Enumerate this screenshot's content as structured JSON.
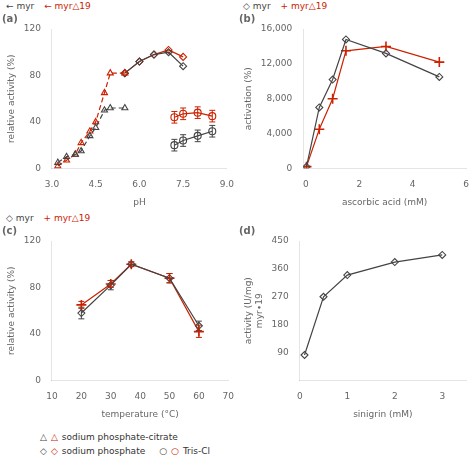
{
  "chart_data": [
    {
      "type": "line",
      "title": "(a)",
      "xlabel": "pH",
      "ylabel": "relative activity (%)",
      "xlim": [
        3,
        9
      ],
      "ylim": [
        0,
        120
      ],
      "xticks": [
        {
          "value": 3,
          "label": "3.0"
        },
        4.5,
        {
          "value": 6,
          "label": "6.0"
        },
        7.5,
        {
          "value": 9,
          "label": "9.0"
        }
      ],
      "yticks": [
        0,
        40,
        80,
        120
      ],
      "grid": false,
      "series": [
        {
          "x": [
            3.2,
            3.5,
            3.8,
            4.0,
            4.3,
            4.5,
            4.8,
            5.0,
            5.5
          ],
          "values": [
            5,
            10,
            12,
            15,
            28,
            35,
            50,
            52,
            52
          ],
          "color": "#444444",
          "marker": "triangle",
          "line_style": "dashed"
        },
        {
          "x": [
            3.2,
            3.5,
            3.8,
            4.0,
            4.3,
            4.5,
            4.8,
            5.0,
            5.5
          ],
          "values": [
            2,
            7,
            12,
            22,
            32,
            40,
            65,
            82,
            82
          ],
          "color": "#cc2200",
          "marker": "triangle",
          "line_style": "dashed"
        },
        {
          "x": [
            5.5,
            6.0,
            6.5,
            7.0,
            7.5
          ],
          "values": [
            82,
            92,
            98,
            100,
            88
          ],
          "color": "#444444",
          "marker": "diamond",
          "line_style": "solid"
        },
        {
          "x": [
            5.5,
            6.0,
            6.5,
            7.0,
            7.5
          ],
          "values": [
            82,
            92,
            98,
            102,
            96
          ],
          "color": "#cc2200",
          "marker": "diamond",
          "line_style": "solid"
        },
        {
          "x": [
            7.2,
            7.5,
            8.0,
            8.5
          ],
          "values": [
            20,
            24,
            28,
            32
          ],
          "yerr": [
            5,
            5,
            5,
            5
          ],
          "color": "#444444",
          "marker": "circle",
          "line_style": "solid"
        },
        {
          "x": [
            7.2,
            7.5,
            8.0,
            8.5
          ],
          "values": [
            44,
            47,
            48,
            45
          ],
          "yerr": [
            5,
            5,
            5,
            5
          ],
          "color": "#cc2200",
          "marker": "circle",
          "line_style": "solid"
        }
      ],
      "annotations": [
        {
          "text": "← myr",
          "color": "#444444"
        },
        {
          "text": "← myr△19",
          "color": "#cc2200"
        }
      ]
    },
    {
      "type": "line",
      "title": "(b)",
      "xlabel": "ascorbic acid (mM)",
      "ylabel": "activation (%)",
      "xlim": [
        -0.1,
        6
      ],
      "ylim": [
        0,
        16000
      ],
      "xticks": [
        0,
        2,
        4,
        6
      ],
      "yticks": [
        0,
        {
          "value": 4000,
          "label": "4,000"
        },
        {
          "value": 8000,
          "label": "8,000"
        },
        {
          "value": 12000,
          "label": "12,000"
        },
        {
          "value": 16000,
          "label": "16,000"
        }
      ],
      "grid": false,
      "series": [
        {
          "x": [
            0.02,
            0.5,
            1.0,
            1.5,
            3.0,
            5.0
          ],
          "values": [
            200,
            7000,
            10200,
            14800,
            13200,
            10500
          ],
          "color": "#444444",
          "marker": "diamond",
          "line_style": "solid"
        },
        {
          "x": [
            0.02,
            0.5,
            1.0,
            1.5,
            3.0,
            5.0
          ],
          "values": [
            200,
            4500,
            8000,
            13500,
            14000,
            12200
          ],
          "color": "#cc2200",
          "marker": "plus",
          "line_style": "solid"
        }
      ],
      "annotations": [
        {
          "text": "◇ myr",
          "color": "#444444"
        },
        {
          "text": "+ myr△19",
          "color": "#cc2200"
        }
      ]
    },
    {
      "type": "line",
      "title": "(c)",
      "xlabel": "temperature (°C)",
      "ylabel": "relative activity (%)",
      "xlim": [
        10,
        70
      ],
      "ylim": [
        0,
        120
      ],
      "xticks": [
        10,
        20,
        30,
        40,
        50,
        60,
        70
      ],
      "yticks": [
        0,
        40,
        80,
        120
      ],
      "grid": false,
      "series": [
        {
          "x": [
            20,
            30,
            37,
            50,
            60
          ],
          "values": [
            58,
            82,
            100,
            88,
            47
          ],
          "yerr": [
            5,
            4,
            2,
            4,
            4
          ],
          "color": "#444444",
          "marker": "diamond",
          "line_style": "solid"
        },
        {
          "x": [
            20,
            30,
            37,
            50,
            60
          ],
          "values": [
            65,
            83,
            100,
            88,
            42
          ],
          "yerr": [
            3,
            3,
            2,
            4,
            5
          ],
          "color": "#cc2200",
          "marker": "plus",
          "line_style": "solid"
        }
      ],
      "annotations": [
        {
          "text": "◇ myr",
          "color": "#444444"
        },
        {
          "text": "+ myr△19",
          "color": "#cc2200"
        }
      ]
    },
    {
      "type": "line",
      "title": "(d)",
      "xlabel": "sinigrin (mM)",
      "ylabel": "activity (U/mg)\nmyr∙19",
      "xlim": [
        0,
        3.5
      ],
      "ylim": [
        0,
        450
      ],
      "xticks": [
        0,
        1,
        2,
        3
      ],
      "yticks": [
        90,
        180,
        270,
        360,
        450
      ],
      "grid": false,
      "series": [
        {
          "x": [
            0.1,
            0.5,
            1.0,
            2.0,
            3.0
          ],
          "values": [
            82,
            270,
            340,
            382,
            405
          ],
          "color": "#444444",
          "marker": "diamond",
          "line_style": "solid"
        }
      ]
    }
  ],
  "annotations": [
    [
      {
        "text": "△",
        "color": "#444444"
      },
      {
        "text": "△",
        "color": "#cc2200"
      },
      {
        "text": "sodium phosphate-citrate",
        "color": "#333333"
      }
    ],
    [
      {
        "text": "◇",
        "color": "#444444"
      },
      {
        "text": "◇",
        "color": "#cc2200"
      },
      {
        "text": "sodium phosphate",
        "color": "#333333"
      },
      {
        "text": "○",
        "color": "#444444"
      },
      {
        "text": "○",
        "color": "#cc2200"
      },
      {
        "text": "Tris-Cl",
        "color": "#333333"
      }
    ]
  ]
}
